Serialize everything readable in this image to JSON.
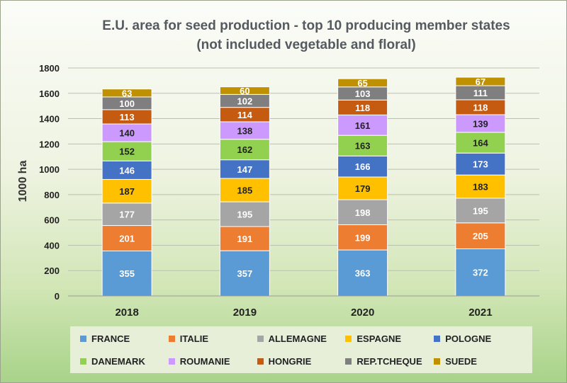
{
  "chart_data": {
    "type": "bar",
    "stacked": true,
    "title": "E.U. area for seed production - top 10 producing member states",
    "subtitle": "(not included vegetable and floral)",
    "ylabel": "1000 ha",
    "xlabel": "",
    "ylim": [
      0,
      1800
    ],
    "yticks": [
      0,
      200,
      400,
      600,
      800,
      1000,
      1200,
      1400,
      1600,
      1800
    ],
    "categories": [
      "2018",
      "2019",
      "2020",
      "2021"
    ],
    "grid": true,
    "legend_position": "bottom",
    "series": [
      {
        "name": "FRANCE",
        "color": "#5b9bd5",
        "values": [
          355,
          357,
          363,
          372
        ]
      },
      {
        "name": "ITALIE",
        "color": "#ed7d31",
        "values": [
          201,
          191,
          199,
          205
        ]
      },
      {
        "name": "ALLEMAGNE",
        "color": "#a5a5a5",
        "values": [
          177,
          195,
          198,
          195
        ]
      },
      {
        "name": "ESPAGNE",
        "color": "#ffc000",
        "values": [
          187,
          185,
          179,
          183
        ]
      },
      {
        "name": "POLOGNE",
        "color": "#4472c4",
        "values": [
          146,
          147,
          166,
          173
        ]
      },
      {
        "name": "DANEMARK",
        "color": "#92d050",
        "values": [
          152,
          162,
          163,
          164
        ]
      },
      {
        "name": "ROUMANIE",
        "color": "#cc99ff",
        "values": [
          140,
          138,
          161,
          139
        ]
      },
      {
        "name": "HONGRIE",
        "color": "#c55a11",
        "values": [
          113,
          114,
          118,
          118
        ]
      },
      {
        "name": "REP.TCHEQUE",
        "color": "#7f7f7f",
        "values": [
          100,
          102,
          103,
          111
        ]
      },
      {
        "name": "SUEDE",
        "color": "#bf9000",
        "values": [
          63,
          60,
          65,
          67
        ]
      }
    ]
  }
}
